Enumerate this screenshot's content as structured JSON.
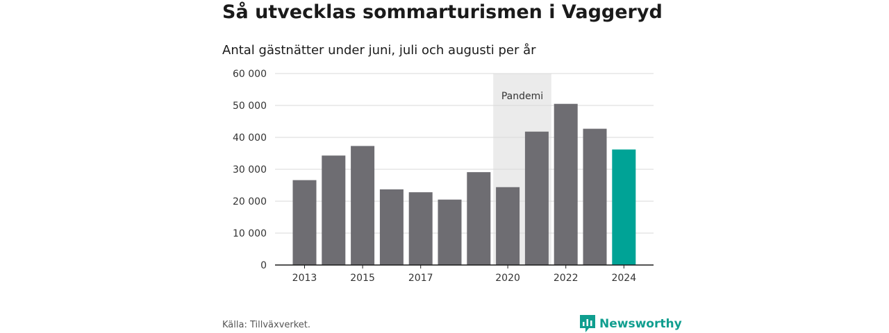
{
  "header": {
    "title": "Så utvecklas sommarturismen i Vaggeryd",
    "subtitle": "Antal gästnätter under juni, juli och augusti per år"
  },
  "footer": {
    "source": "Källa: Tillväxverket.",
    "brand": "Newsworthy"
  },
  "colors": {
    "bar": "#6e6d72",
    "highlight": "#00a396",
    "shade": "#ebebeb",
    "grid": "#d9d9d9",
    "axis": "#1a1a1a"
  },
  "chart_data": {
    "type": "bar",
    "categories": [
      "2013",
      "2014",
      "2015",
      "2016",
      "2017",
      "2018",
      "2019",
      "2020",
      "2021",
      "2022",
      "2023",
      "2024"
    ],
    "values": [
      26600,
      34300,
      37300,
      23700,
      22800,
      20500,
      29100,
      24400,
      41800,
      50500,
      42700,
      36200
    ],
    "highlight_index": 11,
    "x_tick_labels": [
      "2013",
      "2015",
      "2017",
      "2020",
      "2022",
      "2024"
    ],
    "y_ticks": [
      0,
      10000,
      20000,
      30000,
      40000,
      50000,
      60000
    ],
    "y_tick_labels": [
      "0",
      "10 000",
      "20 000",
      "30 000",
      "40 000",
      "50 000",
      "60 000"
    ],
    "ylim": [
      0,
      60000
    ],
    "grid": true,
    "annotation": {
      "label": "Pandemi",
      "from": "2020",
      "to": "2021"
    }
  }
}
